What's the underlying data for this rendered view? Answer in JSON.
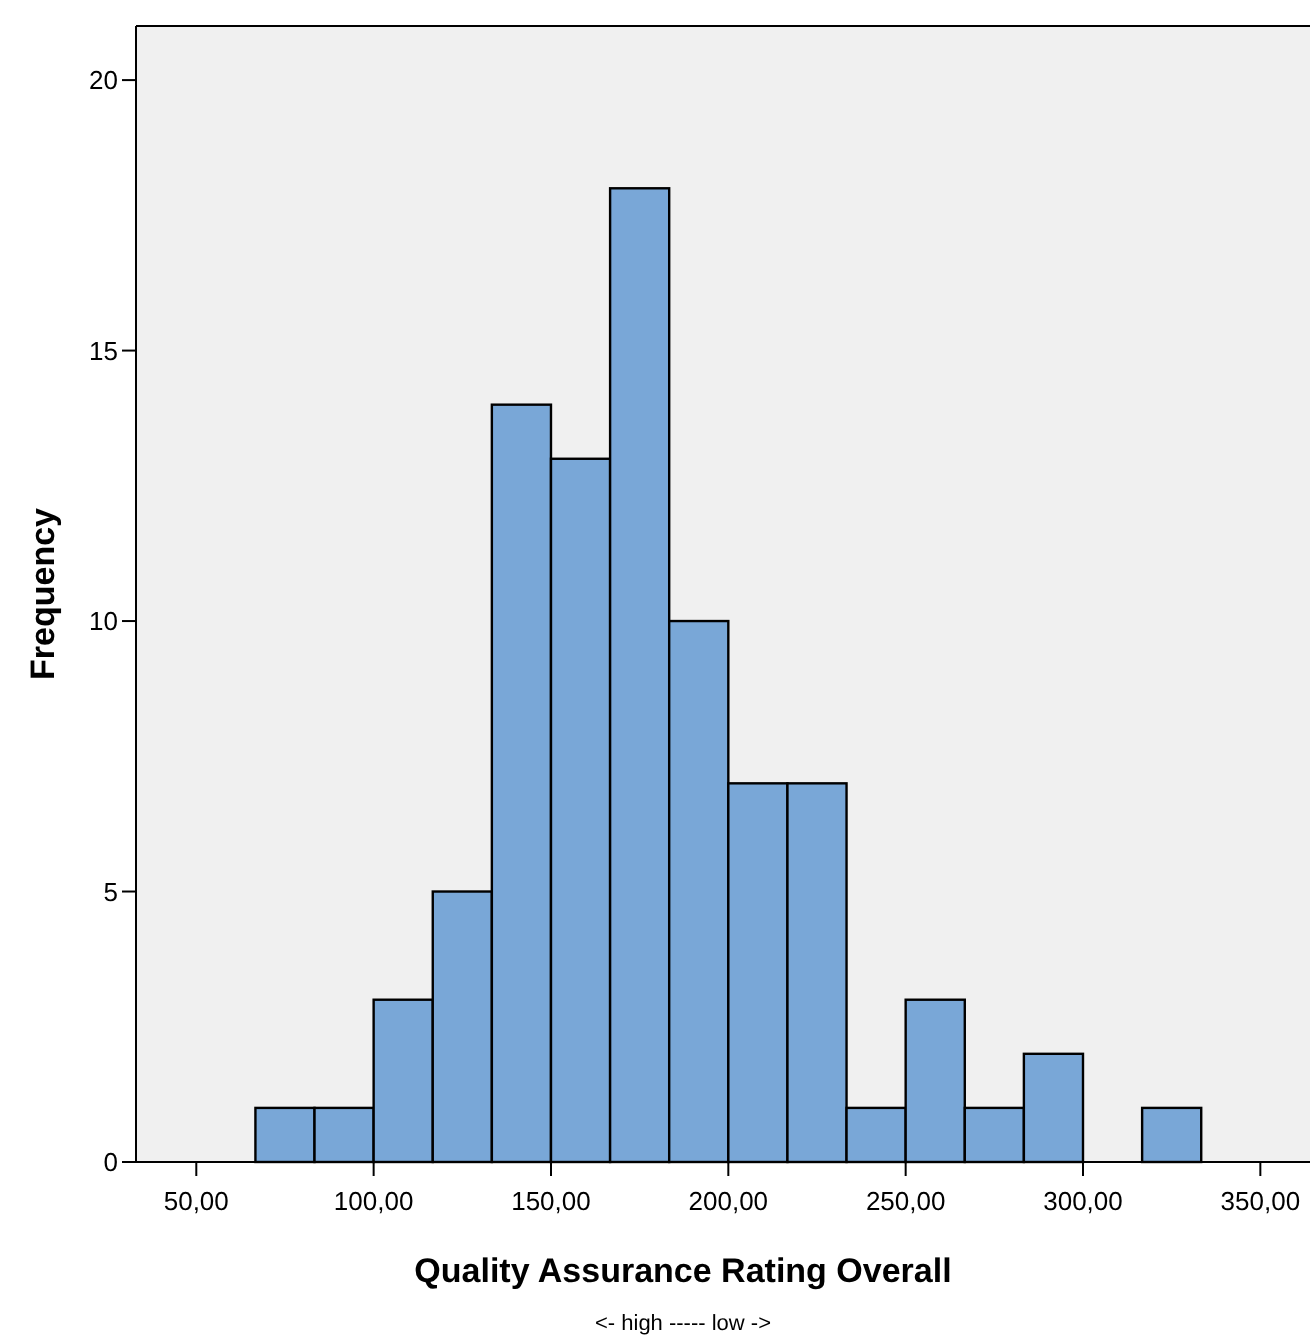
{
  "chart_data": {
    "type": "histogram",
    "xlabel": "Quality Assurance Rating Overall",
    "ylabel": "Frequency",
    "annotations": [
      "<- high ----- low ->"
    ],
    "bins": [
      66.67,
      83.33,
      100,
      116.67,
      133.33,
      150,
      166.67,
      183.33,
      200,
      216.67,
      233.33,
      250,
      266.67,
      283.33,
      300,
      316.67,
      333.33
    ],
    "values": [
      1,
      1,
      3,
      5,
      14,
      13,
      18,
      10,
      7,
      7,
      1,
      3,
      1,
      2,
      0,
      1
    ],
    "color": "#79a7d7",
    "xlim": [
      33,
      364
    ],
    "ylim": [
      0,
      21
    ],
    "xticks": [
      {
        "value": 50,
        "label": "50,00"
      },
      {
        "value": 100,
        "label": "100,00"
      },
      {
        "value": 150,
        "label": "150,00"
      },
      {
        "value": 200,
        "label": "200,00"
      },
      {
        "value": 250,
        "label": "250,00"
      },
      {
        "value": 300,
        "label": "300,00"
      },
      {
        "value": 350,
        "label": "350,00"
      }
    ],
    "yticks": [
      0,
      5,
      10,
      15,
      20
    ],
    "grid": false
  }
}
